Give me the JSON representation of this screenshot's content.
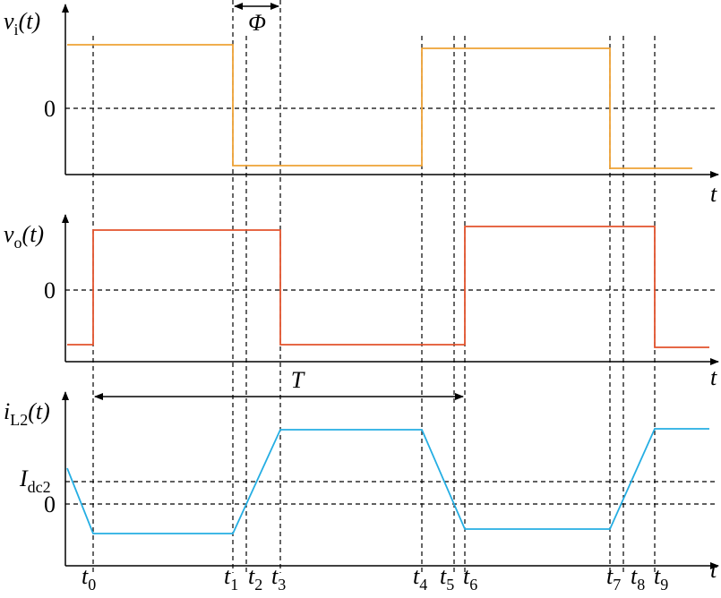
{
  "panels": [
    {
      "label": {
        "symbol": "v",
        "subscript": "i",
        "argument": "(t)"
      },
      "zero": "0",
      "axis": "t"
    },
    {
      "label": {
        "symbol": "v",
        "subscript": "o",
        "argument": "(t)"
      },
      "zero": "0",
      "axis": "t"
    },
    {
      "label": {
        "symbol": "i",
        "subscript": "L2",
        "argument": "(t)"
      },
      "zero": "0",
      "axis": "t",
      "level": {
        "symbol": "I",
        "subscript": "dc2"
      }
    }
  ],
  "phase": "Φ",
  "period": "T",
  "times": [
    {
      "symbol": "t",
      "subscript": "0"
    },
    {
      "symbol": "t",
      "subscript": "1"
    },
    {
      "symbol": "t",
      "subscript": "2"
    },
    {
      "symbol": "t",
      "subscript": "3"
    },
    {
      "symbol": "t",
      "subscript": "4"
    },
    {
      "symbol": "t",
      "subscript": "5"
    },
    {
      "symbol": "t",
      "subscript": "6"
    },
    {
      "symbol": "t",
      "subscript": "7"
    },
    {
      "symbol": "t",
      "subscript": "8"
    },
    {
      "symbol": "t",
      "subscript": "9"
    }
  ]
}
